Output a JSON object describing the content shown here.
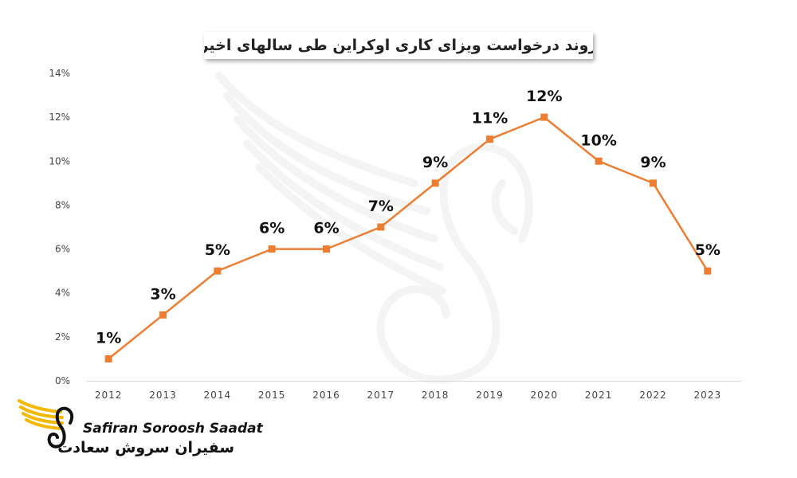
{
  "chart_data": {
    "type": "line",
    "title": "روند درخواست ویزای کاری اوکراین طی سالهای اخیر",
    "categories": [
      "2012",
      "2013",
      "2014",
      "2015",
      "2016",
      "2017",
      "2018",
      "2019",
      "2020",
      "2021",
      "2022",
      "2023"
    ],
    "series": [
      {
        "values": [
          1,
          3,
          5,
          6,
          6,
          7,
          9,
          11,
          12,
          10,
          9,
          5
        ],
        "data_labels": [
          "1%",
          "3%",
          "5%",
          "6%",
          "6%",
          "7%",
          "9%",
          "11%",
          "12%",
          "10%",
          "9%",
          "5%"
        ]
      }
    ],
    "y_ticks": [
      "0%",
      "2%",
      "4%",
      "6%",
      "8%",
      "10%",
      "12%",
      "14%"
    ],
    "ylim": [
      0,
      14
    ],
    "grid": false,
    "legend": "none",
    "line_color": "#ED7D31",
    "marker_color": "#ED7D31"
  },
  "brand": {
    "name_en": "Safiran Soroosh Saadat",
    "name_fa": "سفیران سروش سعادت",
    "accent": "#F5B800"
  },
  "watermark": {
    "icon": "swan-wing-watermark-icon"
  }
}
